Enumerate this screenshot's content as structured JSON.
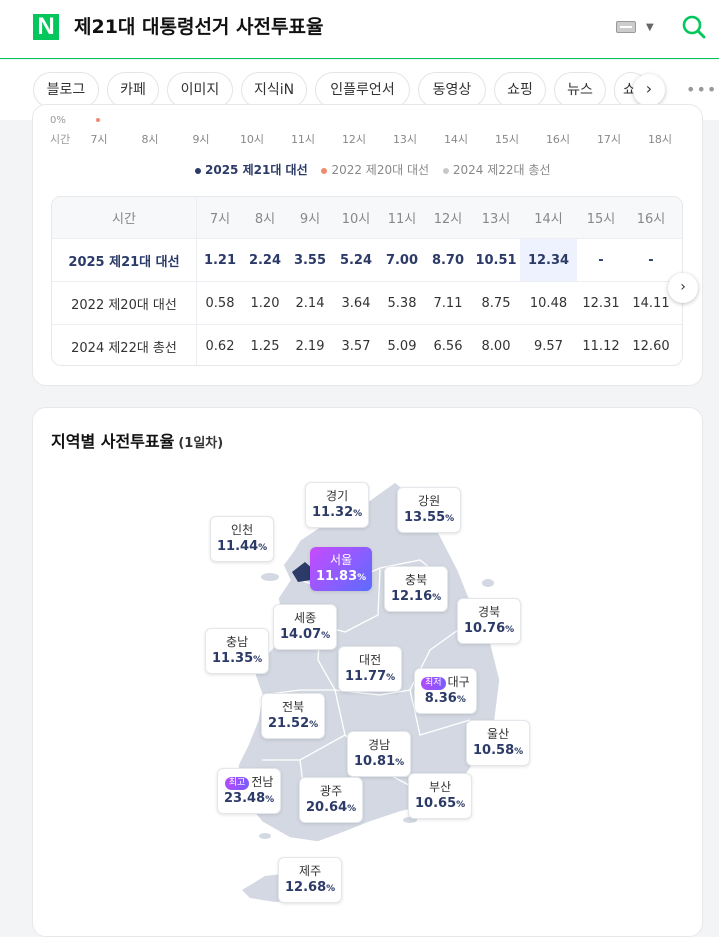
{
  "header": {
    "logo": "N",
    "query": "제21대 대통령선거 사전투표율"
  },
  "tabs": [
    "블로그",
    "카페",
    "이미지",
    "지식iN",
    "인플루언서",
    "동영상",
    "쇼핑",
    "뉴스",
    "쇼"
  ],
  "chart": {
    "zero_label": "0%",
    "axis_label": "시간",
    "ticks": [
      "7시",
      "8시",
      "9시",
      "10시",
      "11시",
      "12시",
      "13시",
      "14시",
      "15시",
      "16시",
      "17시",
      "18시"
    ]
  },
  "legend": [
    "2025 제21대 대선",
    "2022 제20대 대선",
    "2024 제22대 총선"
  ],
  "colors": {
    "s2025": "#2b3a67",
    "s2022": "#f08a6c",
    "s2024": "#c8c8c8",
    "accent": "#03c75a"
  },
  "table": {
    "header_label": "시간",
    "hours": [
      "7시",
      "8시",
      "9시",
      "10시",
      "11시",
      "12시",
      "13시",
      "14시",
      "15시",
      "16시"
    ],
    "rows": [
      {
        "label": "2025 제21대 대선",
        "values": [
          "1.21",
          "2.24",
          "3.55",
          "5.24",
          "7.00",
          "8.70",
          "10.51",
          "12.34",
          "-",
          "-"
        ]
      },
      {
        "label": "2022 제20대 대선",
        "values": [
          "0.58",
          "1.20",
          "2.14",
          "3.64",
          "5.38",
          "7.11",
          "8.75",
          "10.48",
          "12.31",
          "14.11"
        ]
      },
      {
        "label": "2024 제22대 총선",
        "values": [
          "0.62",
          "1.25",
          "2.19",
          "3.57",
          "5.09",
          "6.56",
          "8.00",
          "9.57",
          "11.12",
          "12.60"
        ]
      }
    ]
  },
  "region": {
    "title": "지역별 사전투표율",
    "subtitle": "(1일차)",
    "unit": "%",
    "items": [
      {
        "key": "gyeonggi",
        "name": "경기",
        "value": "11.32"
      },
      {
        "key": "gangwon",
        "name": "강원",
        "value": "13.55"
      },
      {
        "key": "incheon",
        "name": "인천",
        "value": "11.44"
      },
      {
        "key": "seoul",
        "name": "서울",
        "value": "11.83"
      },
      {
        "key": "chungbuk",
        "name": "충북",
        "value": "12.16"
      },
      {
        "key": "sejong",
        "name": "세종",
        "value": "14.07"
      },
      {
        "key": "gyeongbuk",
        "name": "경북",
        "value": "10.76"
      },
      {
        "key": "chungnam",
        "name": "충남",
        "value": "11.35"
      },
      {
        "key": "daejeon",
        "name": "대전",
        "value": "11.77"
      },
      {
        "key": "daegu",
        "name": "대구",
        "value": "8.36",
        "badge": "최저"
      },
      {
        "key": "jeonbuk",
        "name": "전북",
        "value": "21.52"
      },
      {
        "key": "ulsan",
        "name": "울산",
        "value": "10.58"
      },
      {
        "key": "gyeongnam",
        "name": "경남",
        "value": "10.81"
      },
      {
        "key": "jeonnam",
        "name": "전남",
        "value": "23.48",
        "badge": "최고"
      },
      {
        "key": "busan",
        "name": "부산",
        "value": "10.65"
      },
      {
        "key": "gwangju",
        "name": "광주",
        "value": "20.64"
      },
      {
        "key": "jeju",
        "name": "제주",
        "value": "12.68"
      }
    ]
  }
}
